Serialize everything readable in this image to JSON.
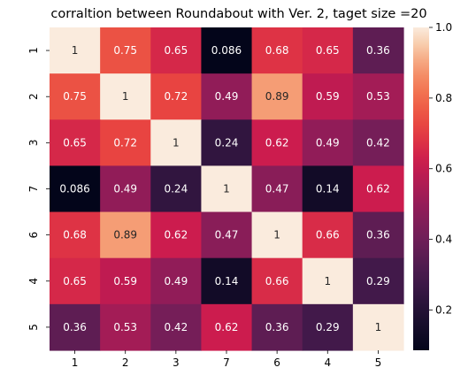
{
  "chart_data": {
    "type": "heatmap",
    "title": "corraltion between Roundabout with Ver. 2, taget size =20",
    "xlabel": "",
    "ylabel": "",
    "x_categories": [
      "1",
      "2",
      "3",
      "7",
      "6",
      "4",
      "5"
    ],
    "y_categories": [
      "1",
      "2",
      "3",
      "7",
      "6",
      "4",
      "5"
    ],
    "values": [
      [
        1,
        0.75,
        0.65,
        0.086,
        0.68,
        0.65,
        0.36
      ],
      [
        0.75,
        1,
        0.72,
        0.49,
        0.89,
        0.59,
        0.53
      ],
      [
        0.65,
        0.72,
        1,
        0.24,
        0.62,
        0.49,
        0.42
      ],
      [
        0.086,
        0.49,
        0.24,
        1,
        0.47,
        0.14,
        0.62
      ],
      [
        0.68,
        0.89,
        0.62,
        0.47,
        1,
        0.66,
        0.36
      ],
      [
        0.65,
        0.59,
        0.49,
        0.14,
        0.66,
        1,
        0.29
      ],
      [
        0.36,
        0.53,
        0.42,
        0.62,
        0.36,
        0.29,
        1
      ]
    ],
    "value_labels": [
      [
        "1",
        "0.75",
        "0.65",
        "0.086",
        "0.68",
        "0.65",
        "0.36"
      ],
      [
        "0.75",
        "1",
        "0.72",
        "0.49",
        "0.89",
        "0.59",
        "0.53"
      ],
      [
        "0.65",
        "0.72",
        "1",
        "0.24",
        "0.62",
        "0.49",
        "0.42"
      ],
      [
        "0.086",
        "0.49",
        "0.24",
        "1",
        "0.47",
        "0.14",
        "0.62"
      ],
      [
        "0.68",
        "0.89",
        "0.62",
        "0.47",
        "1",
        "0.66",
        "0.36"
      ],
      [
        "0.65",
        "0.59",
        "0.49",
        "0.14",
        "0.66",
        "1",
        "0.29"
      ],
      [
        "0.36",
        "0.53",
        "0.42",
        "0.62",
        "0.36",
        "0.29",
        "1"
      ]
    ],
    "color_range": [
      0.086,
      1
    ],
    "colormap": "rocket",
    "colorbar_ticks": [
      0.2,
      0.4,
      0.6,
      0.8,
      1.0
    ],
    "colorbar_tick_labels": [
      "0.2",
      "0.4",
      "0.6",
      "0.8",
      "1.0"
    ],
    "grid": false,
    "legend": "colorbar-right"
  }
}
